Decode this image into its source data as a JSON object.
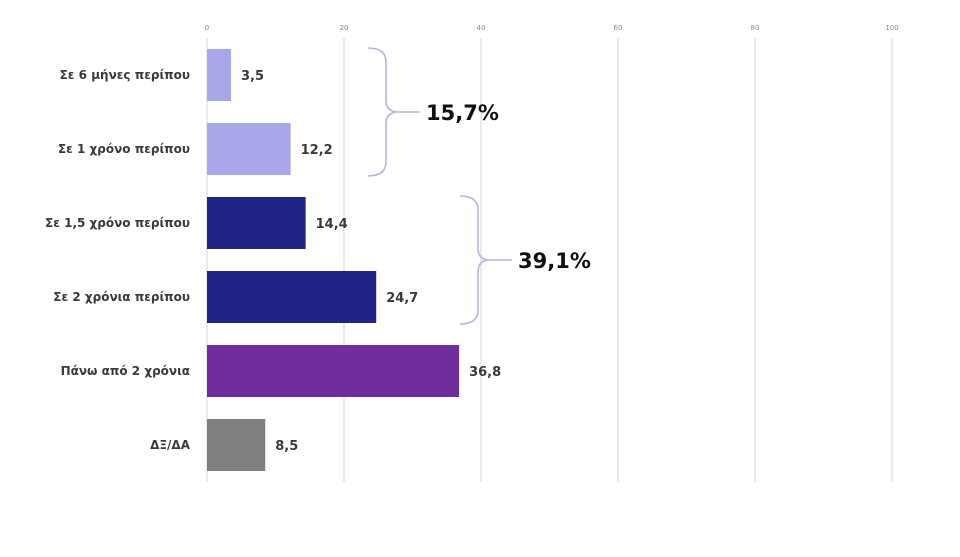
{
  "chart_data": {
    "type": "bar",
    "orientation": "horizontal",
    "title": "",
    "xlabel": "",
    "ylabel": "",
    "xlim": [
      0,
      100
    ],
    "xticks": [
      "0",
      "20",
      "40",
      "60",
      "80",
      "100"
    ],
    "grid": true,
    "categories": [
      "Σε 6 μήνες περίπου",
      "Σε 1 χρόνο περίπου",
      "Σε 1,5 χρόνο περίπου",
      "Σε 2 χρόνια περίπου",
      "Πάνω από 2 χρόνια",
      "ΔΞ/ΔΑ"
    ],
    "values": [
      3.5,
      12.2,
      14.4,
      24.7,
      36.8,
      8.5
    ],
    "value_labels": [
      "3,5",
      "12,2",
      "14,4",
      "24,7",
      "36,8",
      "8,5"
    ],
    "bar_colors": [
      "#a7a7e9",
      "#a7a7e9",
      "#202486",
      "#202486",
      "#6f2d9e",
      "#7f7f7f"
    ],
    "groups": [
      {
        "label": "15,7%",
        "from_index": 0,
        "to_index": 1
      },
      {
        "label": "39,1%",
        "from_index": 2,
        "to_index": 3
      }
    ]
  }
}
